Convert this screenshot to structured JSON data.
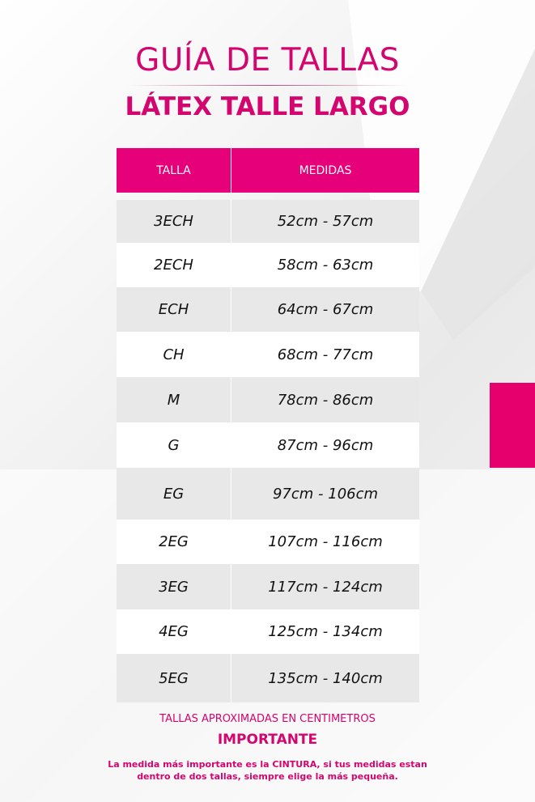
{
  "header": {
    "title": "GUÍA DE TALLAS",
    "subtitle": "LÁTEX TALLE LARGO"
  },
  "table": {
    "columns": [
      "TALLA",
      "MEDIDAS"
    ],
    "rows": [
      {
        "size": "3ECH",
        "range": "52cm - 57cm"
      },
      {
        "size": "2ECH",
        "range": "58cm - 63cm"
      },
      {
        "size": "ECH",
        "range": "64cm - 67cm"
      },
      {
        "size": "CH",
        "range": "68cm - 77cm"
      },
      {
        "size": "M",
        "range": "78cm - 86cm"
      },
      {
        "size": "G",
        "range": "87cm - 96cm"
      },
      {
        "size": "EG",
        "range": "97cm - 106cm"
      },
      {
        "size": "2EG",
        "range": "107cm - 116cm"
      },
      {
        "size": "3EG",
        "range": "117cm - 124cm"
      },
      {
        "size": "4EG",
        "range": "125cm - 134cm"
      },
      {
        "size": "5EG",
        "range": "135cm - 140cm"
      }
    ]
  },
  "footer": {
    "note": "TALLAS APROXIMADAS EN CENTIMETROS",
    "important": "IMPORTANTE",
    "line1": "La medida más importante es la CINTURA, si tus medidas estan",
    "line2": "dentro de dos tallas, siempre elige la más pequeña."
  },
  "colors": {
    "accent": "#e6007a",
    "title": "#d3066f"
  }
}
